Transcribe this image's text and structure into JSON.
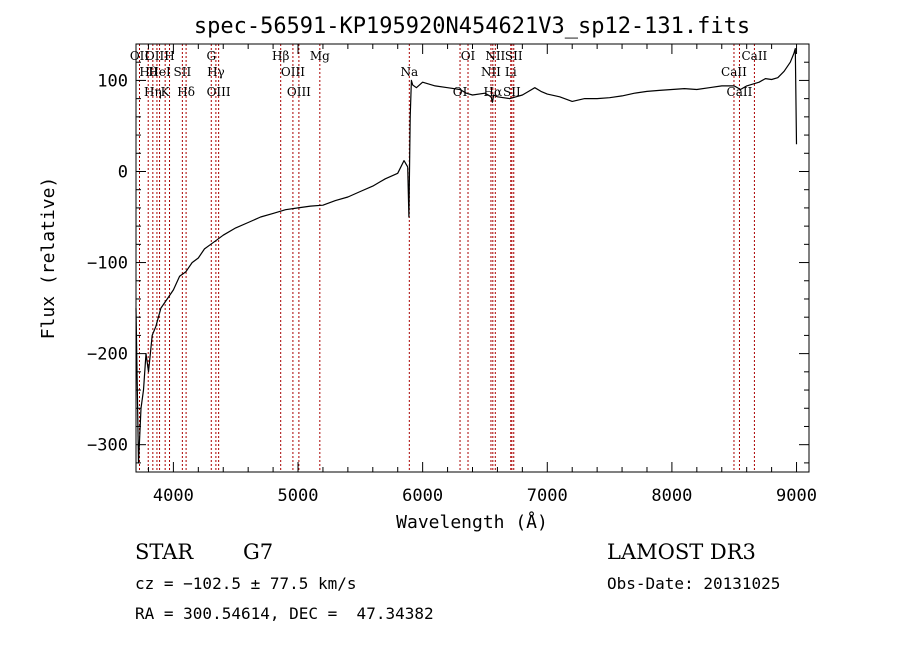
{
  "chart_data": {
    "type": "line",
    "title": "spec-56591-KP195920N454621V3_sp12-131.fits",
    "xlabel": "Wavelength (Å)",
    "ylabel": "Flux (relative)",
    "xlim": [
      3700,
      9100
    ],
    "ylim": [
      -330,
      140
    ],
    "xticks": [
      4000,
      5000,
      6000,
      7000,
      8000,
      9000
    ],
    "xtick_labels": [
      "4000",
      "5000",
      "6000",
      "7000",
      "8000",
      "9000"
    ],
    "yticks": [
      -300,
      -200,
      -100,
      0,
      100
    ],
    "ytick_labels": [
      "−300",
      "−200",
      "−100",
      "0",
      "100"
    ],
    "series": [
      {
        "name": "flux",
        "x": [
          3700,
          3720,
          3740,
          3760,
          3780,
          3800,
          3830,
          3860,
          3900,
          3950,
          4000,
          4050,
          4100,
          4150,
          4200,
          4250,
          4300,
          4350,
          4400,
          4500,
          4600,
          4700,
          4800,
          4900,
          5000,
          5100,
          5200,
          5300,
          5400,
          5500,
          5600,
          5700,
          5800,
          5850,
          5880,
          5890,
          5900,
          5910,
          5920,
          5950,
          6000,
          6100,
          6200,
          6300,
          6350,
          6400,
          6500,
          6550,
          6560,
          6570,
          6600,
          6700,
          6800,
          6850,
          6900,
          6950,
          7000,
          7100,
          7200,
          7300,
          7400,
          7500,
          7600,
          7700,
          7800,
          7900,
          8000,
          8100,
          8200,
          8300,
          8400,
          8500,
          8550,
          8600,
          8650,
          8700,
          8750,
          8800,
          8850,
          8900,
          8950,
          8980,
          8990,
          9000
        ],
        "y": [
          -150,
          -320,
          -260,
          -240,
          -200,
          -220,
          -180,
          -170,
          -150,
          -140,
          -130,
          -115,
          -110,
          -100,
          -95,
          -85,
          -80,
          -75,
          -70,
          -62,
          -56,
          -50,
          -46,
          -42,
          -40,
          -38,
          -37,
          -32,
          -28,
          -22,
          -16,
          -8,
          -2,
          12,
          5,
          -50,
          60,
          100,
          95,
          92,
          98,
          94,
          92,
          90,
          86,
          84,
          86,
          82,
          76,
          84,
          82,
          80,
          84,
          88,
          92,
          88,
          85,
          82,
          77,
          80,
          80,
          81,
          83,
          86,
          88,
          89,
          90,
          91,
          90,
          92,
          94,
          94,
          90,
          94,
          96,
          98,
          102,
          101,
          103,
          110,
          120,
          130,
          135,
          30
        ]
      }
    ],
    "line_marks": [
      {
        "wl": 3728,
        "label": "OII"
      },
      {
        "wl": 3798,
        "label": "Hθ"
      },
      {
        "wl": 3835,
        "label": "Hη"
      },
      {
        "wl": 3868,
        "label": "OIII"
      },
      {
        "wl": 3889,
        "label": "HeI"
      },
      {
        "wl": 3934,
        "label": "K"
      },
      {
        "wl": 3969,
        "label": "H"
      },
      {
        "wl": 4072,
        "label": "SII"
      },
      {
        "wl": 4102,
        "label": "Hδ"
      },
      {
        "wl": 4304,
        "label": "G"
      },
      {
        "wl": 4341,
        "label": "Hγ"
      },
      {
        "wl": 4363,
        "label": "OIII"
      },
      {
        "wl": 4861,
        "label": "Hβ"
      },
      {
        "wl": 4959,
        "label": "OIII"
      },
      {
        "wl": 5007,
        "label": "OIII"
      },
      {
        "wl": 5175,
        "label": "Mg"
      },
      {
        "wl": 5893,
        "label": "Na"
      },
      {
        "wl": 6300,
        "label": "OI"
      },
      {
        "wl": 6364,
        "label": "OI"
      },
      {
        "wl": 6548,
        "label": "NII"
      },
      {
        "wl": 6563,
        "label": "Hα"
      },
      {
        "wl": 6583,
        "label": "NII"
      },
      {
        "wl": 6707,
        "label": "Li"
      },
      {
        "wl": 6716,
        "label": "SII"
      },
      {
        "wl": 6731,
        "label": "SII"
      },
      {
        "wl": 8498,
        "label": "CaII"
      },
      {
        "wl": 8542,
        "label": "CaII"
      },
      {
        "wl": 8662,
        "label": "CaII"
      }
    ],
    "line_color": "#000000",
    "mark_color": "#aa0000"
  },
  "info": {
    "object_class": "STAR",
    "subclass": "G7",
    "survey": "LAMOST DR3",
    "cz": "cz = −102.5 ± 77.5 km/s",
    "obs_date": "Obs-Date: 20131025",
    "coords": "RA = 300.54614, DEC =  47.34382"
  }
}
